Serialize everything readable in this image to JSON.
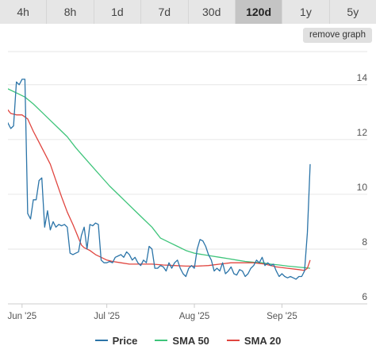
{
  "tabs": [
    {
      "label": "4h",
      "active": false
    },
    {
      "label": "8h",
      "active": false
    },
    {
      "label": "1d",
      "active": false
    },
    {
      "label": "7d",
      "active": false
    },
    {
      "label": "30d",
      "active": false
    },
    {
      "label": "120d",
      "active": true
    },
    {
      "label": "1y",
      "active": false
    },
    {
      "label": "5y",
      "active": false
    }
  ],
  "remove_button": "remove graph",
  "colors": {
    "price": "#2b74a8",
    "sma50": "#3ec47a",
    "sma20": "#e0453f",
    "grid": "#e6e6e6",
    "axis_text": "#555555"
  },
  "chart_data": {
    "type": "line",
    "ylim": [
      6,
      15.5
    ],
    "xlim": [
      -5,
      118
    ],
    "yticks": [
      6,
      8,
      10,
      12,
      14
    ],
    "xticks": [
      {
        "x": 0,
        "label": "Jun '25"
      },
      {
        "x": 30,
        "label": "Jul '25"
      },
      {
        "x": 61,
        "label": "Aug '25"
      },
      {
        "x": 92,
        "label": "Sep '25"
      }
    ],
    "grid": true,
    "legend": "bottom",
    "series": [
      {
        "name": "Price",
        "key": "price",
        "points": [
          [
            -8,
            12.5
          ],
          [
            -7,
            12.35
          ],
          [
            -6,
            12.8
          ],
          [
            -5,
            12.6
          ],
          [
            -4,
            12.4
          ],
          [
            -3,
            12.5
          ],
          [
            -2,
            14.1
          ],
          [
            -1,
            14.0
          ],
          [
            0,
            14.2
          ],
          [
            1,
            14.2
          ],
          [
            2,
            9.3
          ],
          [
            3,
            9.1
          ],
          [
            4,
            9.8
          ],
          [
            5,
            9.8
          ],
          [
            6,
            10.5
          ],
          [
            7,
            10.6
          ],
          [
            8,
            8.8
          ],
          [
            9,
            9.4
          ],
          [
            10,
            8.7
          ],
          [
            11,
            9.0
          ],
          [
            12,
            8.8
          ],
          [
            13,
            8.9
          ],
          [
            14,
            8.85
          ],
          [
            15,
            8.9
          ],
          [
            16,
            8.8
          ],
          [
            17,
            7.85
          ],
          [
            18,
            7.8
          ],
          [
            19,
            7.85
          ],
          [
            20,
            7.9
          ],
          [
            21,
            8.5
          ],
          [
            22,
            8.8
          ],
          [
            23,
            8.0
          ],
          [
            24,
            8.9
          ],
          [
            25,
            8.85
          ],
          [
            26,
            8.95
          ],
          [
            27,
            8.9
          ],
          [
            28,
            7.6
          ],
          [
            29,
            7.5
          ],
          [
            30,
            7.5
          ],
          [
            31,
            7.55
          ],
          [
            32,
            7.5
          ],
          [
            33,
            7.7
          ],
          [
            34,
            7.75
          ],
          [
            35,
            7.8
          ],
          [
            36,
            7.7
          ],
          [
            37,
            7.9
          ],
          [
            38,
            7.8
          ],
          [
            39,
            7.6
          ],
          [
            40,
            7.7
          ],
          [
            41,
            7.5
          ],
          [
            42,
            7.4
          ],
          [
            43,
            7.6
          ],
          [
            44,
            7.5
          ],
          [
            45,
            8.1
          ],
          [
            46,
            8.0
          ],
          [
            47,
            7.3
          ],
          [
            48,
            7.3
          ],
          [
            49,
            7.4
          ],
          [
            50,
            7.35
          ],
          [
            51,
            7.2
          ],
          [
            52,
            7.5
          ],
          [
            53,
            7.3
          ],
          [
            54,
            7.5
          ],
          [
            55,
            7.6
          ],
          [
            56,
            7.3
          ],
          [
            57,
            7.1
          ],
          [
            58,
            7.0
          ],
          [
            59,
            7.3
          ],
          [
            60,
            7.4
          ],
          [
            61,
            7.3
          ],
          [
            62,
            8.0
          ],
          [
            63,
            8.35
          ],
          [
            64,
            8.3
          ],
          [
            65,
            8.1
          ],
          [
            66,
            7.8
          ],
          [
            67,
            7.6
          ],
          [
            68,
            7.2
          ],
          [
            69,
            7.3
          ],
          [
            70,
            7.2
          ],
          [
            71,
            7.5
          ],
          [
            72,
            7.1
          ],
          [
            73,
            7.2
          ],
          [
            74,
            7.35
          ],
          [
            75,
            7.1
          ],
          [
            76,
            7.05
          ],
          [
            77,
            7.25
          ],
          [
            78,
            7.2
          ],
          [
            79,
            7.0
          ],
          [
            80,
            7.1
          ],
          [
            81,
            7.3
          ],
          [
            82,
            7.4
          ],
          [
            83,
            7.6
          ],
          [
            84,
            7.5
          ],
          [
            85,
            7.7
          ],
          [
            86,
            7.4
          ],
          [
            87,
            7.5
          ],
          [
            88,
            7.4
          ],
          [
            89,
            7.45
          ],
          [
            90,
            7.2
          ],
          [
            91,
            7.0
          ],
          [
            92,
            7.1
          ],
          [
            93,
            7.0
          ],
          [
            94,
            6.95
          ],
          [
            95,
            7.0
          ],
          [
            96,
            6.95
          ],
          [
            97,
            6.9
          ],
          [
            98,
            7.0
          ],
          [
            99,
            7.0
          ],
          [
            100,
            7.2
          ],
          [
            101,
            8.6
          ],
          [
            102,
            11.1
          ]
        ]
      },
      {
        "name": "SMA 50",
        "key": "sma50",
        "points": [
          [
            -8,
            13.95
          ],
          [
            -5,
            13.85
          ],
          [
            -2,
            13.7
          ],
          [
            1,
            13.55
          ],
          [
            4,
            13.3
          ],
          [
            7,
            13.0
          ],
          [
            10,
            12.7
          ],
          [
            13,
            12.4
          ],
          [
            16,
            12.1
          ],
          [
            19,
            11.7
          ],
          [
            22,
            11.35
          ],
          [
            25,
            11.0
          ],
          [
            28,
            10.65
          ],
          [
            31,
            10.3
          ],
          [
            34,
            10.0
          ],
          [
            37,
            9.7
          ],
          [
            40,
            9.4
          ],
          [
            43,
            9.1
          ],
          [
            46,
            8.8
          ],
          [
            49,
            8.4
          ],
          [
            52,
            8.25
          ],
          [
            55,
            8.1
          ],
          [
            58,
            7.95
          ],
          [
            61,
            7.85
          ],
          [
            64,
            7.8
          ],
          [
            67,
            7.75
          ],
          [
            70,
            7.7
          ],
          [
            73,
            7.65
          ],
          [
            76,
            7.6
          ],
          [
            79,
            7.55
          ],
          [
            82,
            7.52
          ],
          [
            85,
            7.5
          ],
          [
            88,
            7.45
          ],
          [
            91,
            7.42
          ],
          [
            94,
            7.38
          ],
          [
            97,
            7.35
          ],
          [
            100,
            7.32
          ],
          [
            102,
            7.3
          ]
        ]
      },
      {
        "name": "SMA 20",
        "key": "sma20",
        "points": [
          [
            -8,
            13.5
          ],
          [
            -6,
            13.2
          ],
          [
            -4,
            12.95
          ],
          [
            -2,
            12.9
          ],
          [
            0,
            12.9
          ],
          [
            2,
            12.75
          ],
          [
            4,
            12.3
          ],
          [
            6,
            11.9
          ],
          [
            8,
            11.5
          ],
          [
            10,
            11.1
          ],
          [
            12,
            10.5
          ],
          [
            14,
            9.9
          ],
          [
            16,
            9.35
          ],
          [
            18,
            8.9
          ],
          [
            19,
            8.65
          ],
          [
            20,
            8.4
          ],
          [
            21,
            8.15
          ],
          [
            22,
            8.05
          ],
          [
            24,
            7.95
          ],
          [
            26,
            7.8
          ],
          [
            28,
            7.7
          ],
          [
            30,
            7.6
          ],
          [
            32,
            7.55
          ],
          [
            35,
            7.5
          ],
          [
            38,
            7.45
          ],
          [
            42,
            7.45
          ],
          [
            46,
            7.45
          ],
          [
            50,
            7.42
          ],
          [
            54,
            7.4
          ],
          [
            58,
            7.38
          ],
          [
            62,
            7.38
          ],
          [
            66,
            7.4
          ],
          [
            70,
            7.45
          ],
          [
            74,
            7.5
          ],
          [
            78,
            7.5
          ],
          [
            82,
            7.5
          ],
          [
            86,
            7.45
          ],
          [
            90,
            7.35
          ],
          [
            94,
            7.3
          ],
          [
            98,
            7.25
          ],
          [
            100,
            7.22
          ],
          [
            101,
            7.3
          ],
          [
            102,
            7.6
          ]
        ]
      }
    ]
  }
}
